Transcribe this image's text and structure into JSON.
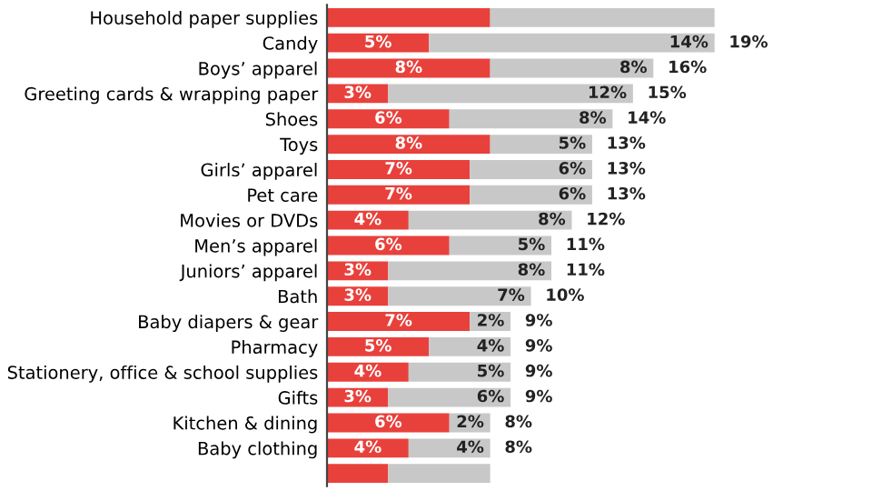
{
  "chart_data": {
    "type": "bar",
    "orientation": "horizontal",
    "stacked": true,
    "categories": [
      "Household paper supplies",
      "Candy",
      "Boys’ apparel",
      "Greeting cards & wrapping paper",
      "Shoes",
      "Toys",
      "Girls’ apparel",
      "Pet care",
      "Movies or DVDs",
      "Men’s apparel",
      "Juniors’ apparel",
      "Bath",
      "Baby diapers & gear",
      "Pharmacy",
      "Stationery, office & school supplies",
      "Gifts",
      "Kitchen & dining",
      "Baby clothing",
      null
    ],
    "series": [
      {
        "color": "#e8413c",
        "values": [
          8,
          5,
          8,
          3,
          6,
          8,
          7,
          7,
          4,
          6,
          3,
          3,
          7,
          5,
          4,
          3,
          6,
          4,
          3
        ],
        "value_labels": [
          null,
          "5%",
          "8%",
          "3%",
          "6%",
          "8%",
          "7%",
          "7%",
          "4%",
          "6%",
          "3%",
          "3%",
          "7%",
          "5%",
          "4%",
          "3%",
          "6%",
          "4%",
          null
        ]
      },
      {
        "color": "#c8c8c8",
        "values": [
          11,
          14,
          8,
          12,
          8,
          5,
          6,
          6,
          8,
          5,
          8,
          7,
          2,
          4,
          5,
          6,
          2,
          4,
          5
        ],
        "value_labels": [
          null,
          "14%",
          "8%",
          "12%",
          "8%",
          "5%",
          "6%",
          "6%",
          "8%",
          "5%",
          "8%",
          "7%",
          "2%",
          "4%",
          "5%",
          "6%",
          "2%",
          "4%",
          null
        ]
      }
    ],
    "totals": [
      null,
      "19%",
      "16%",
      "15%",
      "14%",
      "13%",
      "13%",
      "13%",
      "12%",
      "11%",
      "11%",
      "10%",
      "9%",
      "9%",
      "9%",
      "9%",
      "8%",
      "8%",
      null
    ],
    "tick_labels": "y",
    "grid": false,
    "legend": false
  }
}
